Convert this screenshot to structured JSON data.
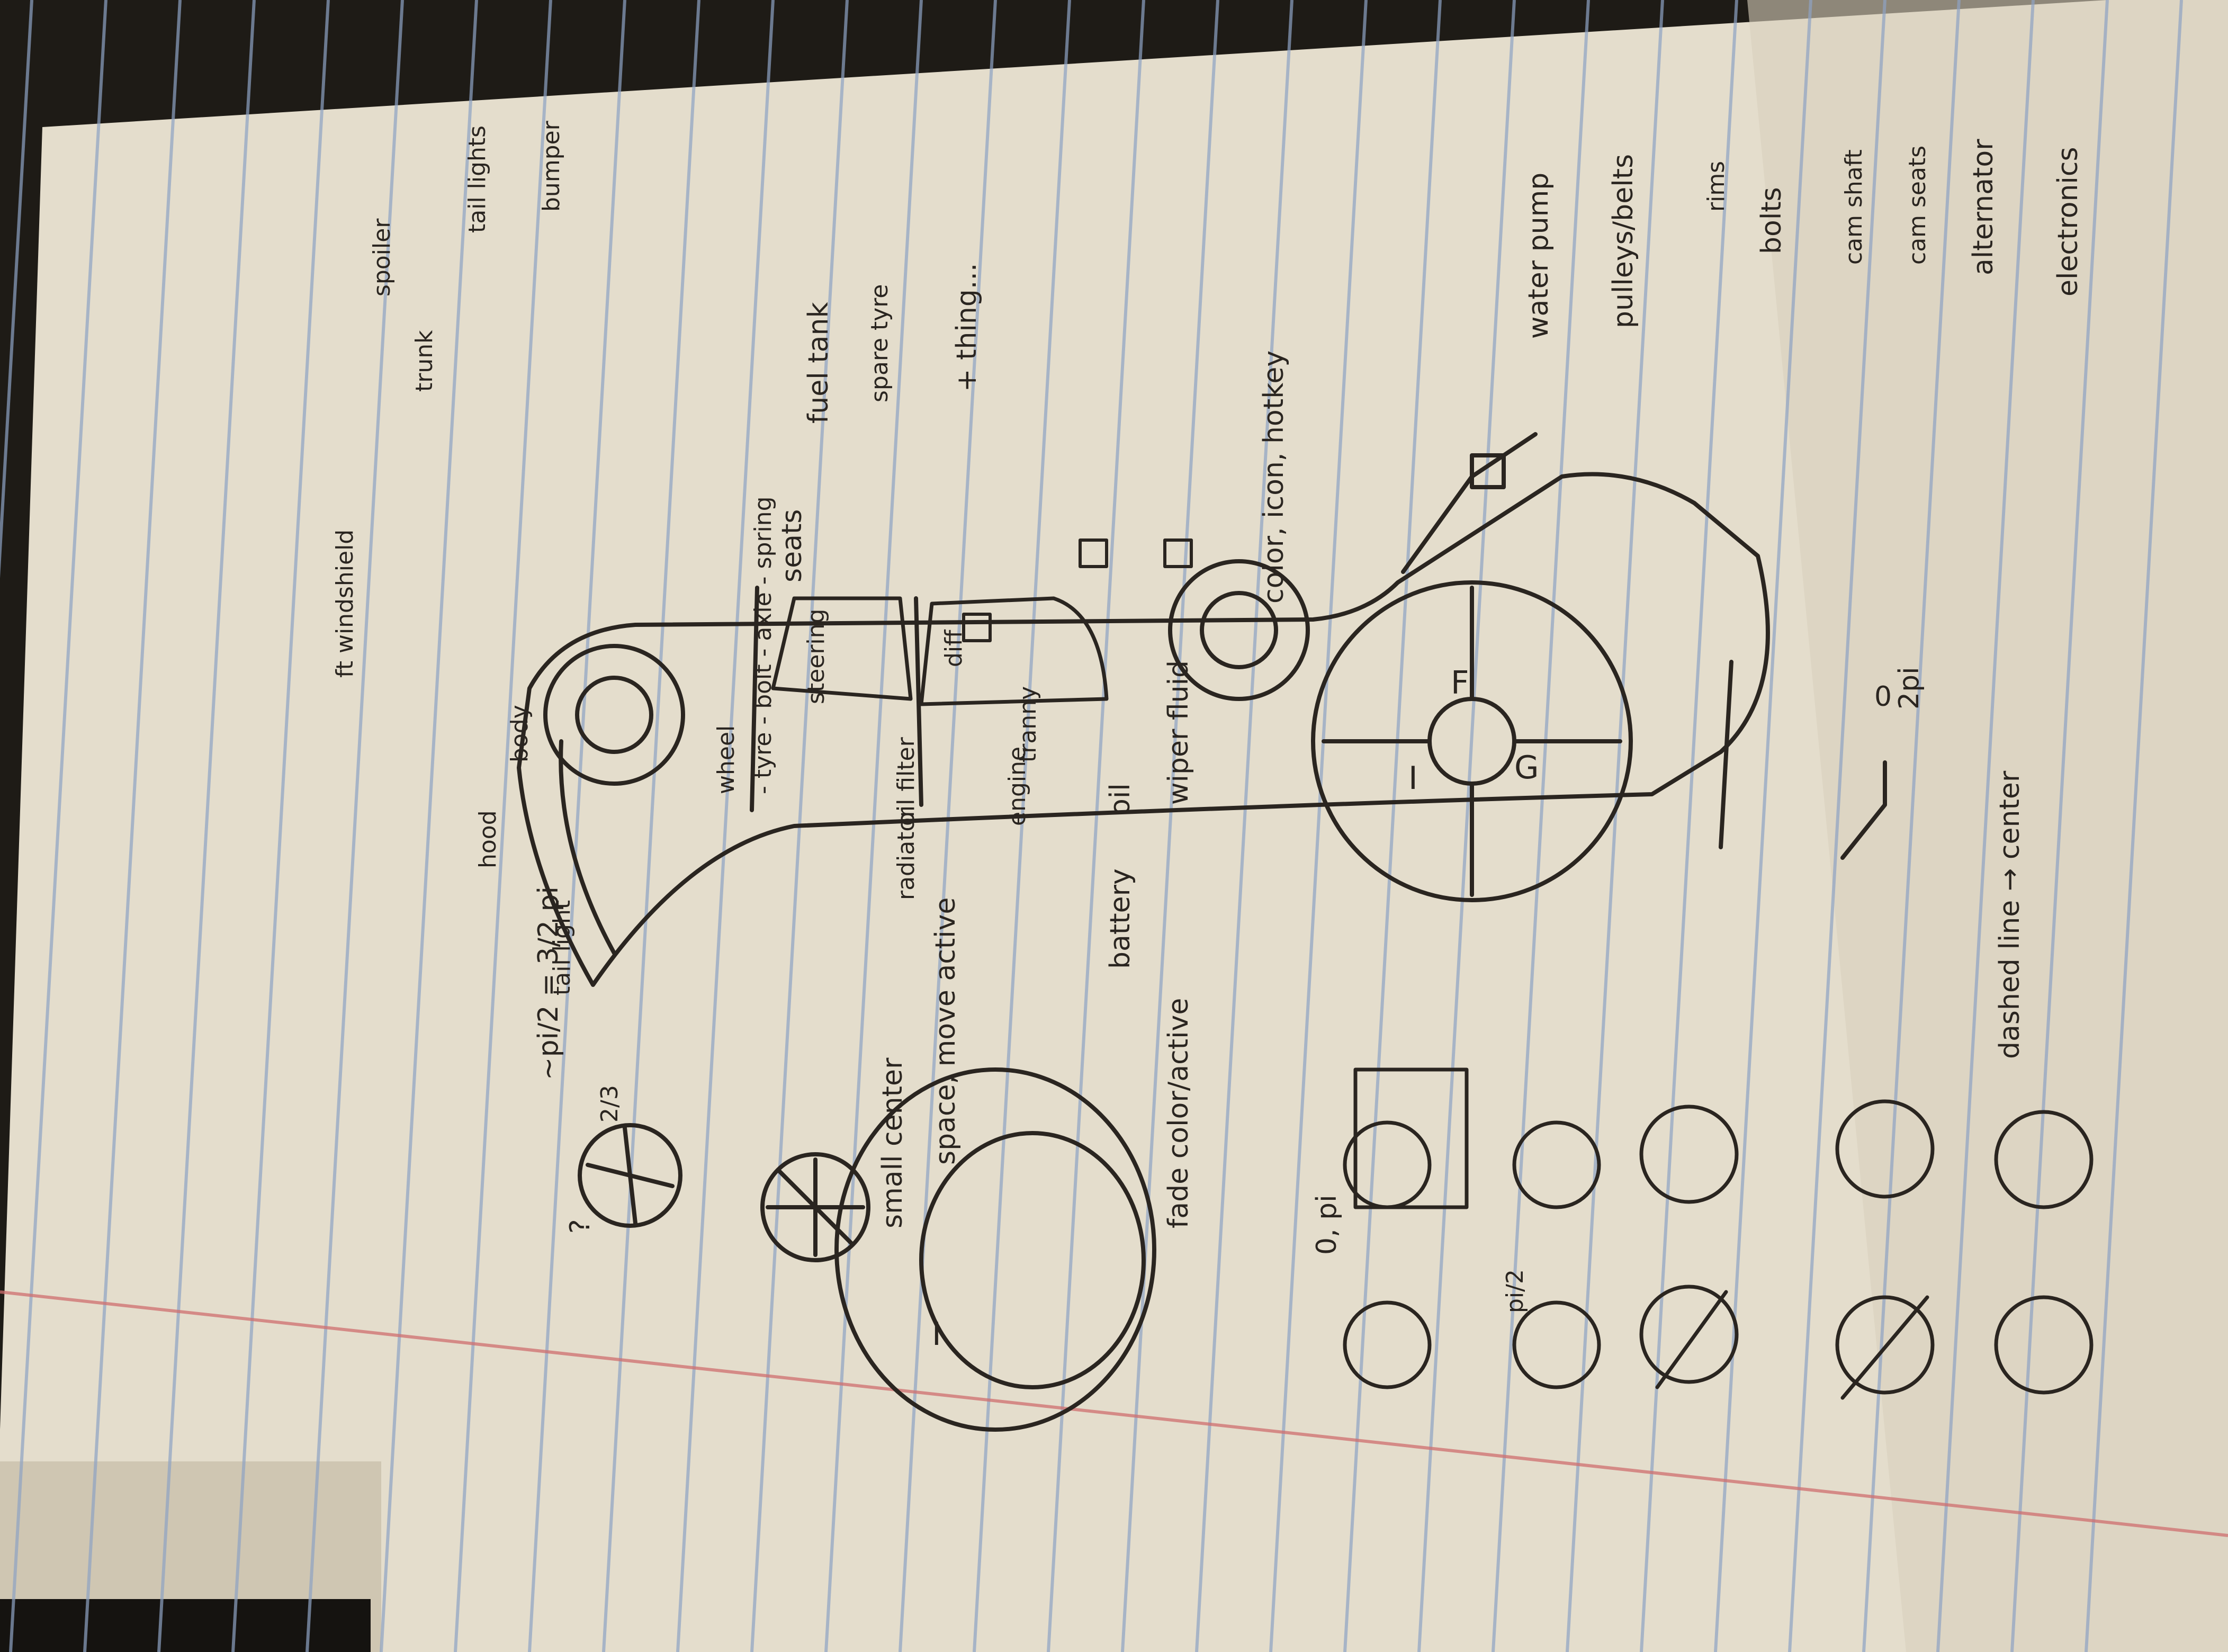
{
  "colors": {
    "background": "#1e1b16",
    "paper": "#e4ddcc",
    "rule_line": "#8ea3c4",
    "margin_line": "#cf6f6f",
    "ink": "#2a2520"
  },
  "icons": {
    "car": "car-sketch-icon",
    "pie": "pie-slice-icon",
    "circle_menu": "radial-menu-icon"
  },
  "notes": {
    "question_mark": "?",
    "pi_formula": "~pi/2 = 3/2 pi",
    "fractions": "2/3",
    "small_center": "small center",
    "space_move_active": "space, move active",
    "fade_color": "fade color/active",
    "tail_light": "tail light",
    "hood": "hood",
    "body": "body",
    "windshield": "ft windshield",
    "wheel": "wheel",
    "wheel_sub": "- tyre - bolt - axle - spring",
    "steering": "steering",
    "seats": "seats",
    "fuel_tank": "fuel tank",
    "spare_tyre": "spare tyre",
    "thing": "+ thing...",
    "radiator": "radiator",
    "oil_filter": "oil filter",
    "engine": "engine",
    "tranny": "tranny",
    "diff": "diff",
    "battery": "battery",
    "oil": "oil",
    "wiper_fluid": "wiper fluid",
    "trunk": "trunk",
    "spoiler": "spoiler",
    "tail_lights": "tail lights",
    "bumper": "bumper",
    "color_icon_hotkey": "color, icon, hotkey",
    "radial_i": "I",
    "radial_f": "F",
    "radial_g": "G",
    "water_pump": "water pump",
    "pulleys_belts": "pulleys/belts",
    "rims": "rims",
    "bolts": "bolts",
    "cam_shaft": "cam shaft",
    "cam_seats": "cam seats",
    "alternator": "alternator",
    "electronics": "electronics",
    "angle_zero": "0",
    "two_pi": "2pi",
    "zero_pi": "0, pi",
    "dashed_line": "dashed line → center",
    "pie_big_i": "I",
    "pi_small": "pi/2"
  }
}
